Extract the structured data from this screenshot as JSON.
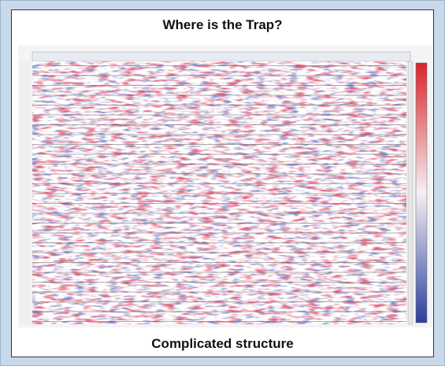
{
  "header": {
    "title": "Where is the Trap?"
  },
  "figure": {
    "caption": "Complicated structure"
  }
}
